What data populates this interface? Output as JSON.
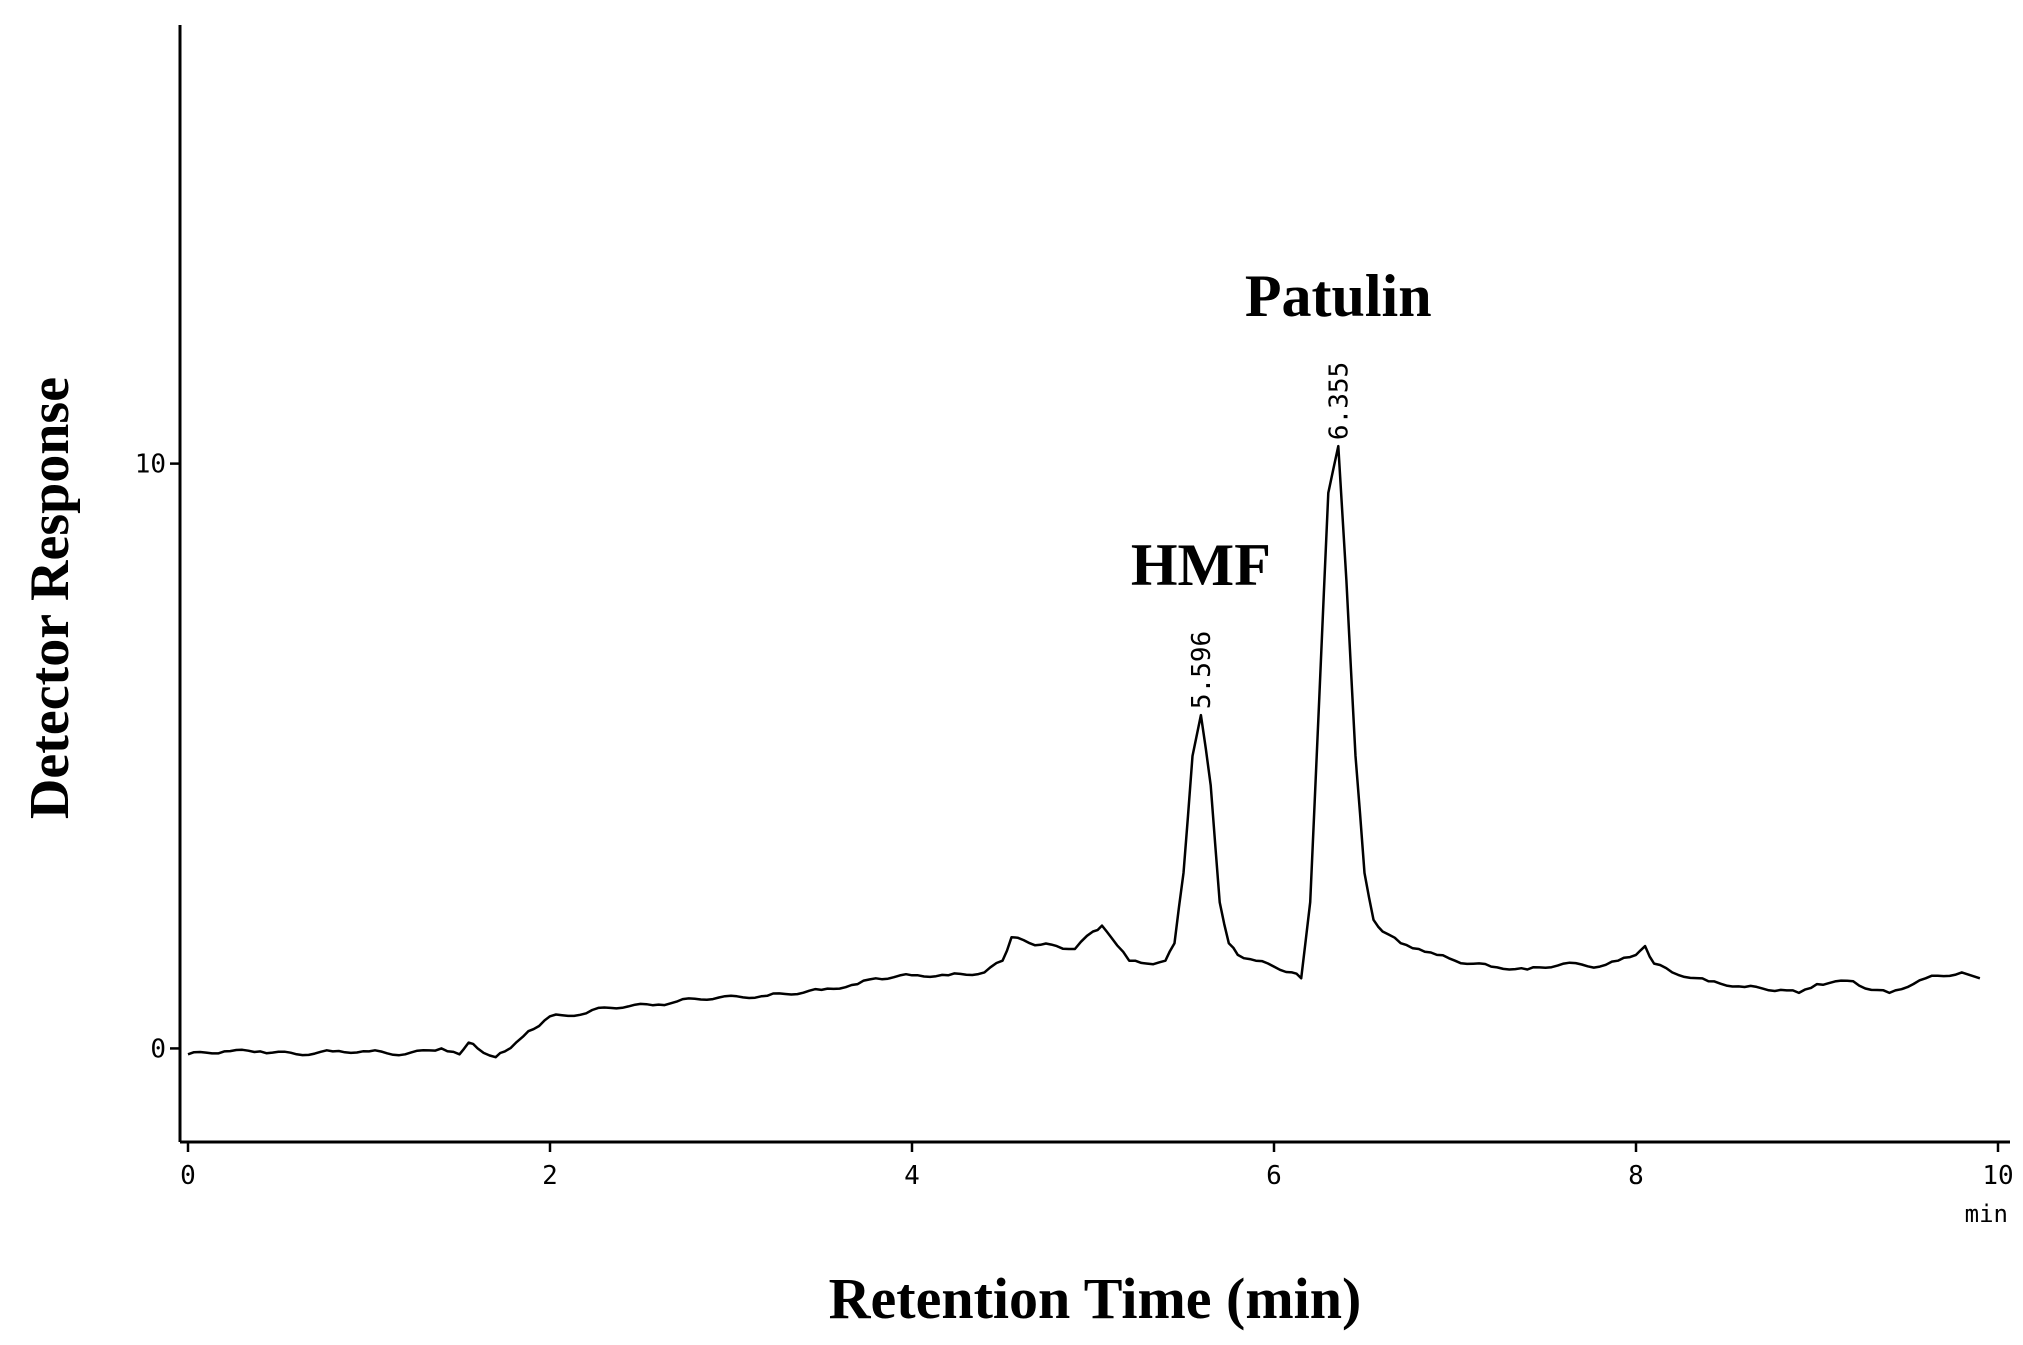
{
  "chart_data": {
    "type": "line",
    "title": "",
    "xlabel": "Retention Time (min)",
    "ylabel": "Detector Response",
    "x_unit": "min",
    "xlim": [
      0,
      10
    ],
    "ylim": [
      -1.6,
      17.5
    ],
    "x_ticks": [
      {
        "value": 0,
        "label": "0"
      },
      {
        "value": 2,
        "label": "2"
      },
      {
        "value": 4,
        "label": "4"
      },
      {
        "value": 6,
        "label": "6"
      },
      {
        "value": 8,
        "label": "8"
      },
      {
        "value": 10,
        "label": "10"
      }
    ],
    "y_ticks": [
      {
        "value": 0,
        "label": "0"
      },
      {
        "value": 10,
        "label": "10"
      }
    ],
    "grid": false,
    "legend": "none",
    "line_color": "#000000",
    "series": [
      {
        "x": [
          0.0,
          0.2,
          0.4,
          0.6,
          0.8,
          1.0,
          1.2,
          1.4,
          1.5,
          1.55,
          1.6,
          1.7,
          1.75,
          1.85,
          2.0,
          2.2,
          2.3,
          2.6,
          2.7,
          2.8,
          3.2,
          3.5,
          3.7,
          3.8,
          4.0,
          4.2,
          4.4,
          4.5,
          4.55,
          4.65,
          4.8,
          4.9,
          5.0,
          5.05,
          5.1,
          5.2,
          5.3,
          5.4,
          5.45,
          5.5,
          5.55,
          5.596,
          5.65,
          5.7,
          5.75,
          5.8,
          5.9,
          6.0,
          6.1,
          6.15,
          6.2,
          6.25,
          6.3,
          6.355,
          6.4,
          6.45,
          6.5,
          6.55,
          6.6,
          6.7,
          6.8,
          6.9,
          7.0,
          7.2,
          7.4,
          7.6,
          7.8,
          7.9,
          8.0,
          8.05,
          8.1,
          8.2,
          8.4,
          8.6,
          8.8,
          8.9,
          9.0,
          9.2,
          9.3,
          9.4,
          9.6,
          9.8,
          9.9
        ],
        "y": [
          -0.1,
          -0.05,
          -0.05,
          -0.1,
          -0.05,
          -0.05,
          -0.1,
          0.0,
          -0.1,
          0.1,
          0.0,
          -0.15,
          -0.05,
          0.2,
          0.55,
          0.6,
          0.7,
          0.75,
          0.8,
          0.85,
          0.9,
          1.0,
          1.1,
          1.2,
          1.25,
          1.25,
          1.3,
          1.5,
          1.9,
          1.8,
          1.75,
          1.7,
          2.0,
          2.1,
          1.9,
          1.5,
          1.45,
          1.5,
          1.8,
          3.0,
          5.0,
          5.7,
          4.5,
          2.5,
          1.8,
          1.6,
          1.5,
          1.4,
          1.3,
          1.2,
          2.5,
          6.0,
          9.5,
          10.3,
          8.0,
          5.0,
          3.0,
          2.2,
          2.0,
          1.8,
          1.7,
          1.6,
          1.5,
          1.4,
          1.35,
          1.45,
          1.4,
          1.5,
          1.6,
          1.75,
          1.45,
          1.3,
          1.15,
          1.05,
          1.0,
          0.95,
          1.1,
          1.15,
          1.0,
          0.95,
          1.2,
          1.3,
          1.2
        ]
      }
    ],
    "annotations": [
      {
        "name": "HMF",
        "retention_time": "5.596",
        "x": 5.596,
        "y": 5.7
      },
      {
        "name": "Patulin",
        "retention_time": "6.355",
        "x": 6.355,
        "y": 10.3
      }
    ]
  }
}
